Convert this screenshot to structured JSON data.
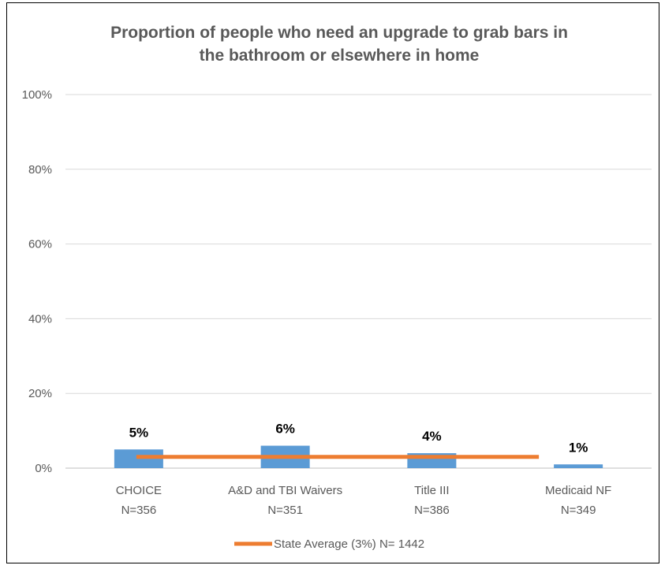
{
  "chart_data": {
    "type": "bar",
    "title_lines": [
      "Proportion of people who need an upgrade to grab bars in",
      "the bathroom or elsewhere in home"
    ],
    "categories": [
      "CHOICE",
      "A&D and TBI Waivers",
      "Title III",
      "Medicaid NF"
    ],
    "category_n": [
      "N=356",
      "N=351",
      "N=386",
      "N=349"
    ],
    "values": [
      5,
      6,
      4,
      1
    ],
    "value_labels": [
      "5%",
      "6%",
      "4%",
      "1%"
    ],
    "ylim": [
      0,
      100
    ],
    "yticks": [
      0,
      20,
      40,
      60,
      80,
      100
    ],
    "ytick_labels": [
      "0%",
      "20%",
      "40%",
      "60%",
      "80%",
      "100%"
    ],
    "grid": true,
    "reference_line": {
      "value": 3,
      "label": "State Average (3%) N= 1442"
    },
    "legend_position": "bottom",
    "colors": {
      "bar": "#5B9BD5",
      "reference": "#ED7D31",
      "grid": "#D9D9D9",
      "text": "#595959"
    }
  }
}
